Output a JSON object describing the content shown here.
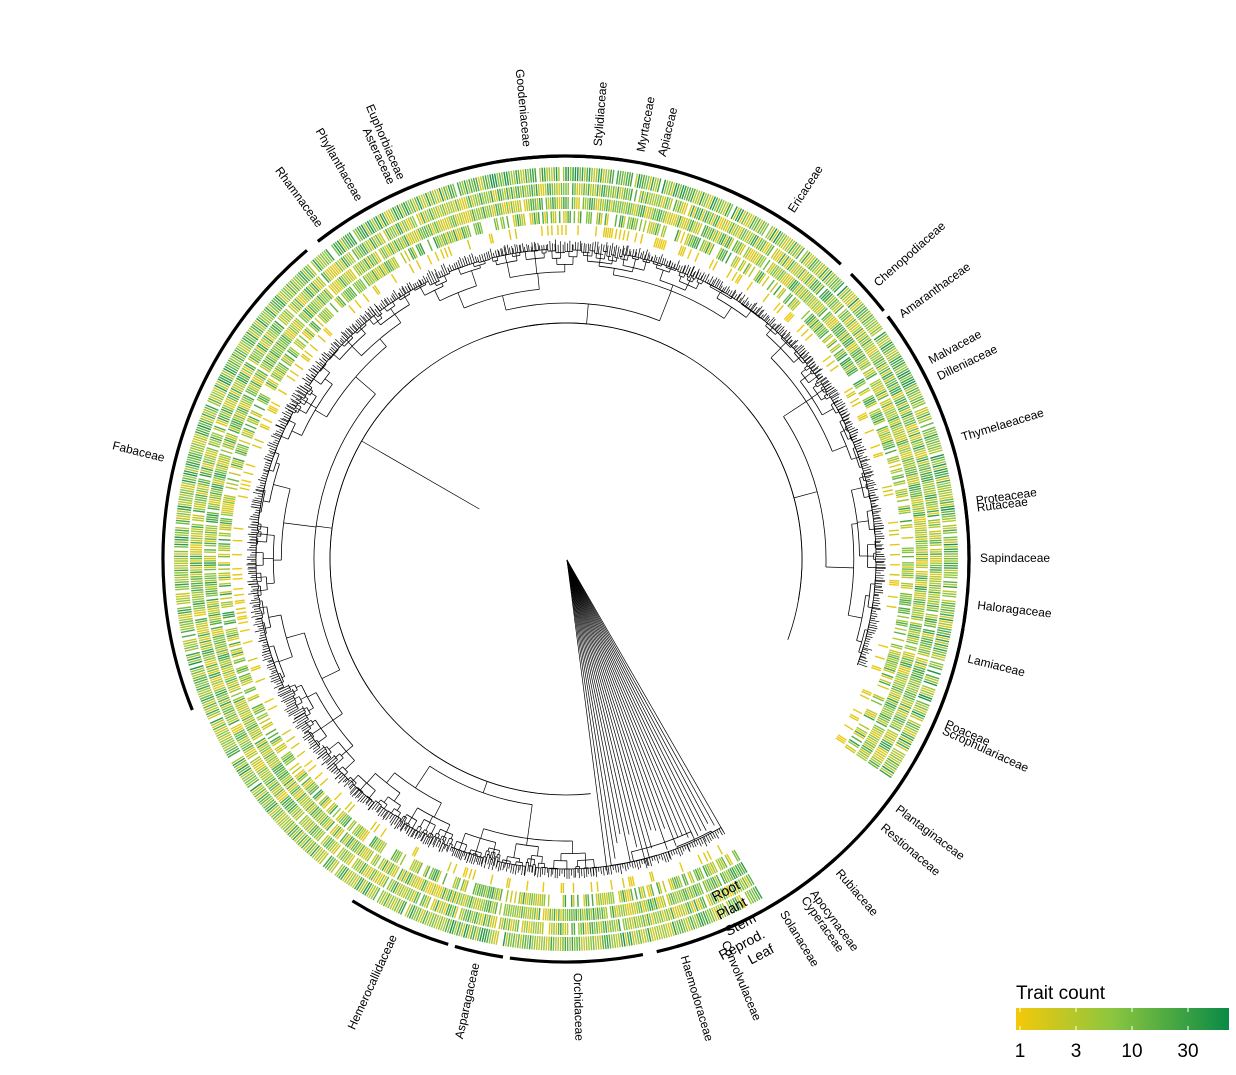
{
  "colors": {
    "low": "#f5c80a",
    "mid": "#8cc63f",
    "high": "#0a8a46",
    "branch": "#000000",
    "arc": "#000000"
  },
  "rings": [
    "Root",
    "Plant",
    "Stem",
    "Reprod.",
    "Leaf"
  ],
  "families": [
    {
      "name": "Asteraceae"
    },
    {
      "name": "Goodeniaceae"
    },
    {
      "name": "Stylidiaceae"
    },
    {
      "name": "Apiaceae"
    },
    {
      "name": "Ericaceae"
    },
    {
      "name": "Chenopodiaceae"
    },
    {
      "name": "Amaranthaceae"
    },
    {
      "name": "Dilleniaceae"
    },
    {
      "name": "Proteaceae"
    },
    {
      "name": "Poaceae"
    },
    {
      "name": "Restionaceae"
    },
    {
      "name": "Cyperaceae"
    },
    {
      "name": "Haemodoraceae"
    },
    {
      "name": "Orchidaceae"
    },
    {
      "name": "Asparagaceae"
    },
    {
      "name": "Hemerocallidaceae"
    },
    {
      "name": "Fabaceae"
    },
    {
      "name": "Rhamnaceae"
    },
    {
      "name": "Phyllanthaceae"
    },
    {
      "name": "Euphorbiaceae"
    },
    {
      "name": "Myrtaceae"
    },
    {
      "name": "Malvaceae"
    },
    {
      "name": "Thymelaeaceae"
    },
    {
      "name": "Rutaceae"
    },
    {
      "name": "Sapindaceae"
    },
    {
      "name": "Haloragaceae"
    },
    {
      "name": "Lamiaceae"
    },
    {
      "name": "Scrophulariaceae"
    },
    {
      "name": "Plantaginaceae"
    },
    {
      "name": "Rubiaceae"
    },
    {
      "name": "Apocynaceae"
    },
    {
      "name": "Solanaceae"
    },
    {
      "name": "Convolvulaceae"
    }
  ],
  "legend": {
    "title": "Trait count",
    "ticks": [
      "1",
      "3",
      "10",
      "30"
    ]
  }
}
